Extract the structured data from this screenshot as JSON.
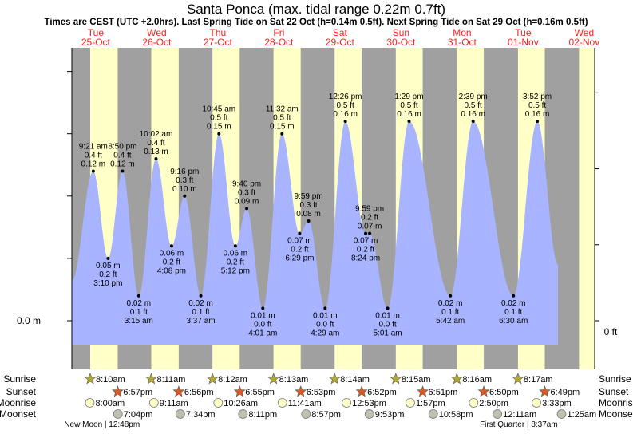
{
  "chart_data": {
    "type": "area",
    "title": "Santa Ponca (max. tidal range 0.22m 0.7ft)",
    "subtitle": "Times are CEST (UTC +2.0hrs). Last Spring Tide on Sat 22 Oct (h=0.14m 0.5ft). Next Spring Tide on Sat 29 Oct (h=0.16m 0.5ft)",
    "y_left_label": "0.0 m",
    "y_right_label": "0 ft",
    "days": [
      {
        "dow": "Tue",
        "date": "25-Oct"
      },
      {
        "dow": "Wed",
        "date": "26-Oct"
      },
      {
        "dow": "Thu",
        "date": "27-Oct"
      },
      {
        "dow": "Fri",
        "date": "28-Oct"
      },
      {
        "dow": "Sat",
        "date": "29-Oct"
      },
      {
        "dow": "Sun",
        "date": "30-Oct"
      },
      {
        "dow": "Mon",
        "date": "31-Oct"
      },
      {
        "dow": "Tue",
        "date": "01-Nov"
      },
      {
        "dow": "Wed",
        "date": "02-Nov"
      }
    ],
    "tides": [
      {
        "t": 0.39,
        "time": "9:21 am",
        "ft": "0.4 ft",
        "m": "0.12 m",
        "h": 0.12,
        "type": "high"
      },
      {
        "t": 0.632,
        "time": "3:10 pm",
        "ft": "0.2 ft",
        "m": "0.05 m",
        "h": 0.05,
        "type": "low"
      },
      {
        "t": 0.868,
        "time": "8:50 pm",
        "ft": "0.4 ft",
        "m": "0.12 m",
        "h": 0.12,
        "type": "high"
      },
      {
        "t": 1.135,
        "time": "3:15 am",
        "ft": "0.1 ft",
        "m": "0.02 m",
        "h": 0.02,
        "type": "low"
      },
      {
        "t": 1.418,
        "time": "10:02 am",
        "ft": "0.4 ft",
        "m": "0.13 m",
        "h": 0.13,
        "type": "high"
      },
      {
        "t": 1.672,
        "time": "4:08 pm",
        "ft": "0.2 ft",
        "m": "0.06 m",
        "h": 0.06,
        "type": "low"
      },
      {
        "t": 1.886,
        "time": "9:16 pm",
        "ft": "0.3 ft",
        "m": "0.10 m",
        "h": 0.1,
        "type": "high"
      },
      {
        "t": 2.151,
        "time": "3:37 am",
        "ft": "0.1 ft",
        "m": "0.02 m",
        "h": 0.02,
        "type": "low"
      },
      {
        "t": 2.448,
        "time": "10:45 am",
        "ft": "0.5 ft",
        "m": "0.15 m",
        "h": 0.15,
        "type": "high"
      },
      {
        "t": 2.717,
        "time": "5:12 pm",
        "ft": "0.2 ft",
        "m": "0.06 m",
        "h": 0.06,
        "type": "low"
      },
      {
        "t": 2.903,
        "time": "9:40 pm",
        "ft": "0.3 ft",
        "m": "0.09 m",
        "h": 0.09,
        "type": "high"
      },
      {
        "t": 3.167,
        "time": "4:01 am",
        "ft": "0.0 ft",
        "m": "0.01 m",
        "h": 0.01,
        "type": "low"
      },
      {
        "t": 3.481,
        "time": "11:32 am",
        "ft": "0.5 ft",
        "m": "0.15 m",
        "h": 0.15,
        "type": "high"
      },
      {
        "t": 3.77,
        "time": "6:29 pm",
        "ft": "0.2 ft",
        "m": "0.07 m",
        "h": 0.07,
        "type": "low"
      },
      {
        "t": 3.916,
        "time": "9:59 pm",
        "ft": "0.3 ft",
        "m": "0.08 m",
        "h": 0.08,
        "type": "high"
      },
      {
        "t": 4.187,
        "time": "4:29 am",
        "ft": "0.0 ft",
        "m": "0.01 m",
        "h": 0.01,
        "type": "low"
      },
      {
        "t": 4.518,
        "time": "12:26 pm",
        "ft": "0.5 ft",
        "m": "0.16 m",
        "h": 0.16,
        "type": "high"
      },
      {
        "t": 4.85,
        "time": "8:24 pm",
        "ft": "0.2 ft",
        "m": "0.07 m",
        "h": 0.07,
        "type": "low"
      },
      {
        "t": 4.916,
        "time": "9:59 pm",
        "ft": "0.2 ft",
        "m": "0.07 m",
        "h": 0.07,
        "type": "high"
      },
      {
        "t": 5.21,
        "time": "5:01 am",
        "ft": "0.0 ft",
        "m": "0.01 m",
        "h": 0.01,
        "type": "low"
      },
      {
        "t": 5.562,
        "time": "1:29 pm",
        "ft": "0.5 ft",
        "m": "0.16 m",
        "h": 0.16,
        "type": "high"
      },
      {
        "t": 6.238,
        "time": "5:42 am",
        "ft": "0.1 ft",
        "m": "0.02 m",
        "h": 0.02,
        "type": "low"
      },
      {
        "t": 6.61,
        "time": "2:39 pm",
        "ft": "0.5 ft",
        "m": "0.16 m",
        "h": 0.16,
        "type": "high"
      },
      {
        "t": 7.271,
        "time": "6:30 am",
        "ft": "0.1 ft",
        "m": "0.02 m",
        "h": 0.02,
        "type": "low"
      },
      {
        "t": 7.661,
        "time": "3:52 pm",
        "ft": "0.5 ft",
        "m": "0.16 m",
        "h": 0.16,
        "type": "high"
      }
    ],
    "row_labels": {
      "sunrise": "Sunrise",
      "sunset": "Sunset",
      "moonrise": "Moonrise",
      "moonset": "Moonset"
    },
    "sunrise": [
      {
        "t": 0.34,
        "l": "8:10am"
      },
      {
        "t": 1.34,
        "l": "8:11am"
      },
      {
        "t": 2.342,
        "l": "8:12am"
      },
      {
        "t": 3.342,
        "l": "8:13am"
      },
      {
        "t": 4.343,
        "l": "8:14am"
      },
      {
        "t": 5.344,
        "l": "8:15am"
      },
      {
        "t": 6.344,
        "l": "8:16am"
      },
      {
        "t": 7.345,
        "l": "8:17am"
      }
    ],
    "sunset": [
      {
        "t": 0.79,
        "l": "6:57pm"
      },
      {
        "t": 1.789,
        "l": "6:56pm"
      },
      {
        "t": 2.788,
        "l": "6:55pm"
      },
      {
        "t": 3.787,
        "l": "6:53pm"
      },
      {
        "t": 4.786,
        "l": "6:52pm"
      },
      {
        "t": 5.785,
        "l": "6:51pm"
      },
      {
        "t": 6.785,
        "l": "6:50pm"
      },
      {
        "t": 7.784,
        "l": "6:49pm"
      }
    ],
    "moonrise": [
      {
        "t": 0.333,
        "l": "8:00am"
      },
      {
        "t": 1.383,
        "l": "9:11am"
      },
      {
        "t": 2.435,
        "l": "10:26am"
      },
      {
        "t": 3.487,
        "l": "11:41am"
      },
      {
        "t": 4.537,
        "l": "12:53pm"
      },
      {
        "t": 5.581,
        "l": "1:57pm"
      },
      {
        "t": 6.618,
        "l": "2:50pm"
      },
      {
        "t": 7.648,
        "l": "3:33pm"
      }
    ],
    "moonset": [
      {
        "t": 0.794,
        "l": "7:04pm"
      },
      {
        "t": 1.815,
        "l": "7:34pm"
      },
      {
        "t": 2.841,
        "l": "8:11pm"
      },
      {
        "t": 3.873,
        "l": "8:57pm"
      },
      {
        "t": 4.912,
        "l": "9:53pm"
      },
      {
        "t": 5.957,
        "l": "10:58pm"
      },
      {
        "t": 7.008,
        "l": "12:11am"
      },
      {
        "t": 8.059,
        "l": "1:25am"
      }
    ],
    "moon_phases": [
      {
        "t": 0.533,
        "l": "New Moon | 12:48pm"
      },
      {
        "t": 7.358,
        "l": "First Quarter | 8:37am"
      }
    ],
    "ylim_m": [
      -0.02,
      0.22
    ],
    "colors": {
      "night": "#a0a0a0",
      "day": "#ffffc8",
      "water": "#a8b4ff",
      "day_label": "#ff2020",
      "sunrise": "#b0a830",
      "sunset": "#e05820",
      "moonrise": "#ffffc8",
      "moonset": "#c0c0b0"
    }
  }
}
